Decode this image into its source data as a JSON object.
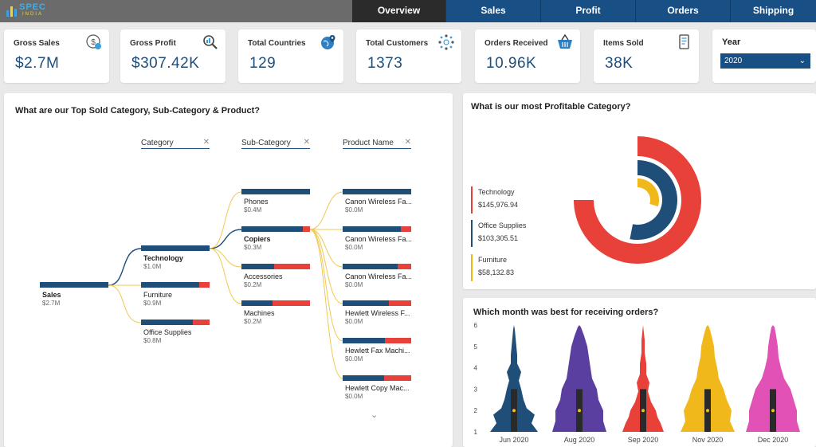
{
  "brand": {
    "name": "SPEC",
    "sub": "INDIA"
  },
  "tabs": [
    {
      "label": "Overview",
      "active": true
    },
    {
      "label": "Sales",
      "active": false
    },
    {
      "label": "Profit",
      "active": false
    },
    {
      "label": "Orders",
      "active": false
    },
    {
      "label": "Shipping",
      "active": false
    }
  ],
  "kpis": [
    {
      "label": "Gross Sales",
      "value": "$2.7M",
      "icon": "dollar-gear-icon"
    },
    {
      "label": "Gross Profit",
      "value": "$307.42K",
      "icon": "magnifier-icon"
    },
    {
      "label": "Total Countries",
      "value": "129",
      "icon": "globe-pin-icon"
    },
    {
      "label": "Total Customers",
      "value": "1373",
      "icon": "network-people-icon"
    },
    {
      "label": "Orders Received",
      "value": "10.96K",
      "icon": "basket-icon"
    },
    {
      "label": "Items Sold",
      "value": "38K",
      "icon": "receipt-icon"
    }
  ],
  "year_filter": {
    "label": "Year",
    "selected": "2020"
  },
  "tree": {
    "title": "What are our Top Sold Category, Sub-Category & Product?",
    "headers": [
      "Category",
      "Sub-Category",
      "Product Name"
    ],
    "root": {
      "name": "Sales",
      "value": "$2.7M"
    },
    "categories": [
      {
        "name": "Technology",
        "value": "$1.0M",
        "fill": 1.0
      },
      {
        "name": "Furniture",
        "value": "$0.9M",
        "fill": 0.85
      },
      {
        "name": "Office Supplies",
        "value": "$0.8M",
        "fill": 0.75
      }
    ],
    "subcategories": [
      {
        "name": "Phones",
        "value": "$0.4M",
        "fill": 1.0
      },
      {
        "name": "Copiers",
        "value": "$0.3M",
        "fill": 0.9
      },
      {
        "name": "Accessories",
        "value": "$0.2M",
        "fill": 0.48
      },
      {
        "name": "Machines",
        "value": "$0.2M",
        "fill": 0.45
      }
    ],
    "products": [
      {
        "name": "Canon Wireless Fa...",
        "value": "$0.0M",
        "fill": 1.0
      },
      {
        "name": "Canon Wireless Fa...",
        "value": "$0.0M",
        "fill": 0.85
      },
      {
        "name": "Canon Wireless Fa...",
        "value": "$0.0M",
        "fill": 0.8
      },
      {
        "name": "Hewlett Wireless F...",
        "value": "$0.0M",
        "fill": 0.67
      },
      {
        "name": "Hewlett Fax Machi...",
        "value": "$0.0M",
        "fill": 0.62
      },
      {
        "name": "Hewlett Copy Mac...",
        "value": "$0.0M",
        "fill": 0.6
      }
    ]
  },
  "profit": {
    "title": "What is our most Profitable Category?",
    "chart_data": {
      "type": "pie",
      "categories": [
        "Technology",
        "Office Supplies",
        "Furniture"
      ],
      "values": [
        145976.94,
        103305.51,
        58132.83
      ],
      "labels": [
        "$145,976.94",
        "$103,305.51",
        "$58,132.83"
      ],
      "colors": [
        "#e8413a",
        "#1f4e79",
        "#f0b81a"
      ]
    }
  },
  "orders": {
    "title": "Which month was best for receiving orders?",
    "chart_data": {
      "type": "violin",
      "categories": [
        "Jun 2020",
        "Aug 2020",
        "Sep 2020",
        "Nov 2020",
        "Dec 2020"
      ],
      "colors": [
        "#1f4e79",
        "#5b3fa0",
        "#e8413a",
        "#f0b81a",
        "#e251b5"
      ],
      "medians": [
        2,
        2,
        2,
        2,
        2
      ],
      "ylim": [
        1,
        6
      ],
      "yticks": [
        1,
        2,
        3,
        4,
        5,
        6
      ]
    }
  }
}
